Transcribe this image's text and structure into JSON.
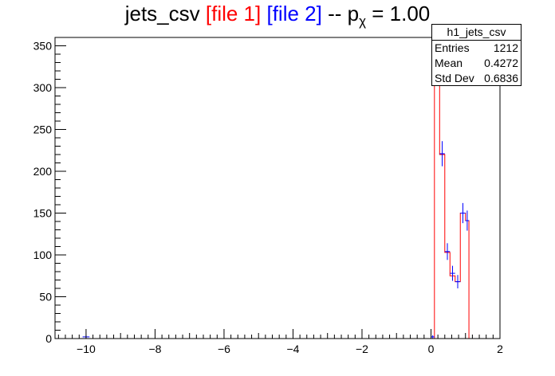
{
  "title": {
    "prefix": "jets_csv ",
    "file1": "[file 1]",
    "file2": "[file 2]",
    "middle": " -- p",
    "sub": "χ",
    "suffix": " = 1.00",
    "file1_color": "#ff0000",
    "file2_color": "#0000ff"
  },
  "stats": {
    "name": "h1_jets_csv",
    "rows": [
      {
        "label": "Entries",
        "value": "1212"
      },
      {
        "label": "Mean",
        "value": "0.4272"
      },
      {
        "label": "Std Dev",
        "value": "0.6836"
      }
    ]
  },
  "chart_data": {
    "type": "histogram",
    "title": "jets_csv [file 1] [file 2] -- pχ = 1.00",
    "xlabel": "",
    "ylabel": "",
    "xlim": [
      -10.9,
      2
    ],
    "ylim": [
      0,
      360
    ],
    "x_ticks": [
      -10,
      -8,
      -6,
      -4,
      -2,
      0,
      2
    ],
    "y_ticks": [
      0,
      50,
      100,
      150,
      200,
      250,
      300,
      350
    ],
    "x_tick_labels": [
      "−10",
      "−8",
      "−6",
      "−4",
      "−2",
      "0",
      "2"
    ],
    "y_tick_labels": [
      "0",
      "50",
      "100",
      "150",
      "200",
      "250",
      "300",
      "350"
    ],
    "grid": false,
    "series": [
      {
        "name": "file 1",
        "style": "step",
        "color": "#ff0000",
        "bins": [
          {
            "lo": -10.1,
            "hi": 0.0,
            "value": 0
          },
          {
            "lo": 0.0,
            "hi": 0.1,
            "value": 0
          },
          {
            "lo": 0.1,
            "hi": 0.25,
            "value": 345
          },
          {
            "lo": 0.25,
            "hi": 0.4,
            "value": 220
          },
          {
            "lo": 0.4,
            "hi": 0.55,
            "value": 103
          },
          {
            "lo": 0.55,
            "hi": 0.7,
            "value": 75
          },
          {
            "lo": 0.7,
            "hi": 0.85,
            "value": 68
          },
          {
            "lo": 0.85,
            "hi": 1.0,
            "value": 150
          },
          {
            "lo": 1.0,
            "hi": 1.1,
            "value": 141
          }
        ]
      },
      {
        "name": "file 2",
        "style": "errorbars",
        "color": "#0000ff",
        "points": [
          {
            "x": -10.0,
            "y": 2,
            "err": 2,
            "xerr": 0.1
          },
          {
            "x": 0.05,
            "y": 2,
            "err": 2,
            "xerr": 0.05
          },
          {
            "x": 0.175,
            "y": 345,
            "err": 19,
            "xerr": 0.075
          },
          {
            "x": 0.325,
            "y": 221,
            "err": 15,
            "xerr": 0.075
          },
          {
            "x": 0.475,
            "y": 104,
            "err": 10,
            "xerr": 0.075
          },
          {
            "x": 0.625,
            "y": 78,
            "err": 9,
            "xerr": 0.075
          },
          {
            "x": 0.775,
            "y": 68,
            "err": 8,
            "xerr": 0.075
          },
          {
            "x": 0.925,
            "y": 150,
            "err": 12,
            "xerr": 0.075
          },
          {
            "x": 1.05,
            "y": 141,
            "err": 12,
            "xerr": 0.05
          }
        ]
      }
    ]
  }
}
